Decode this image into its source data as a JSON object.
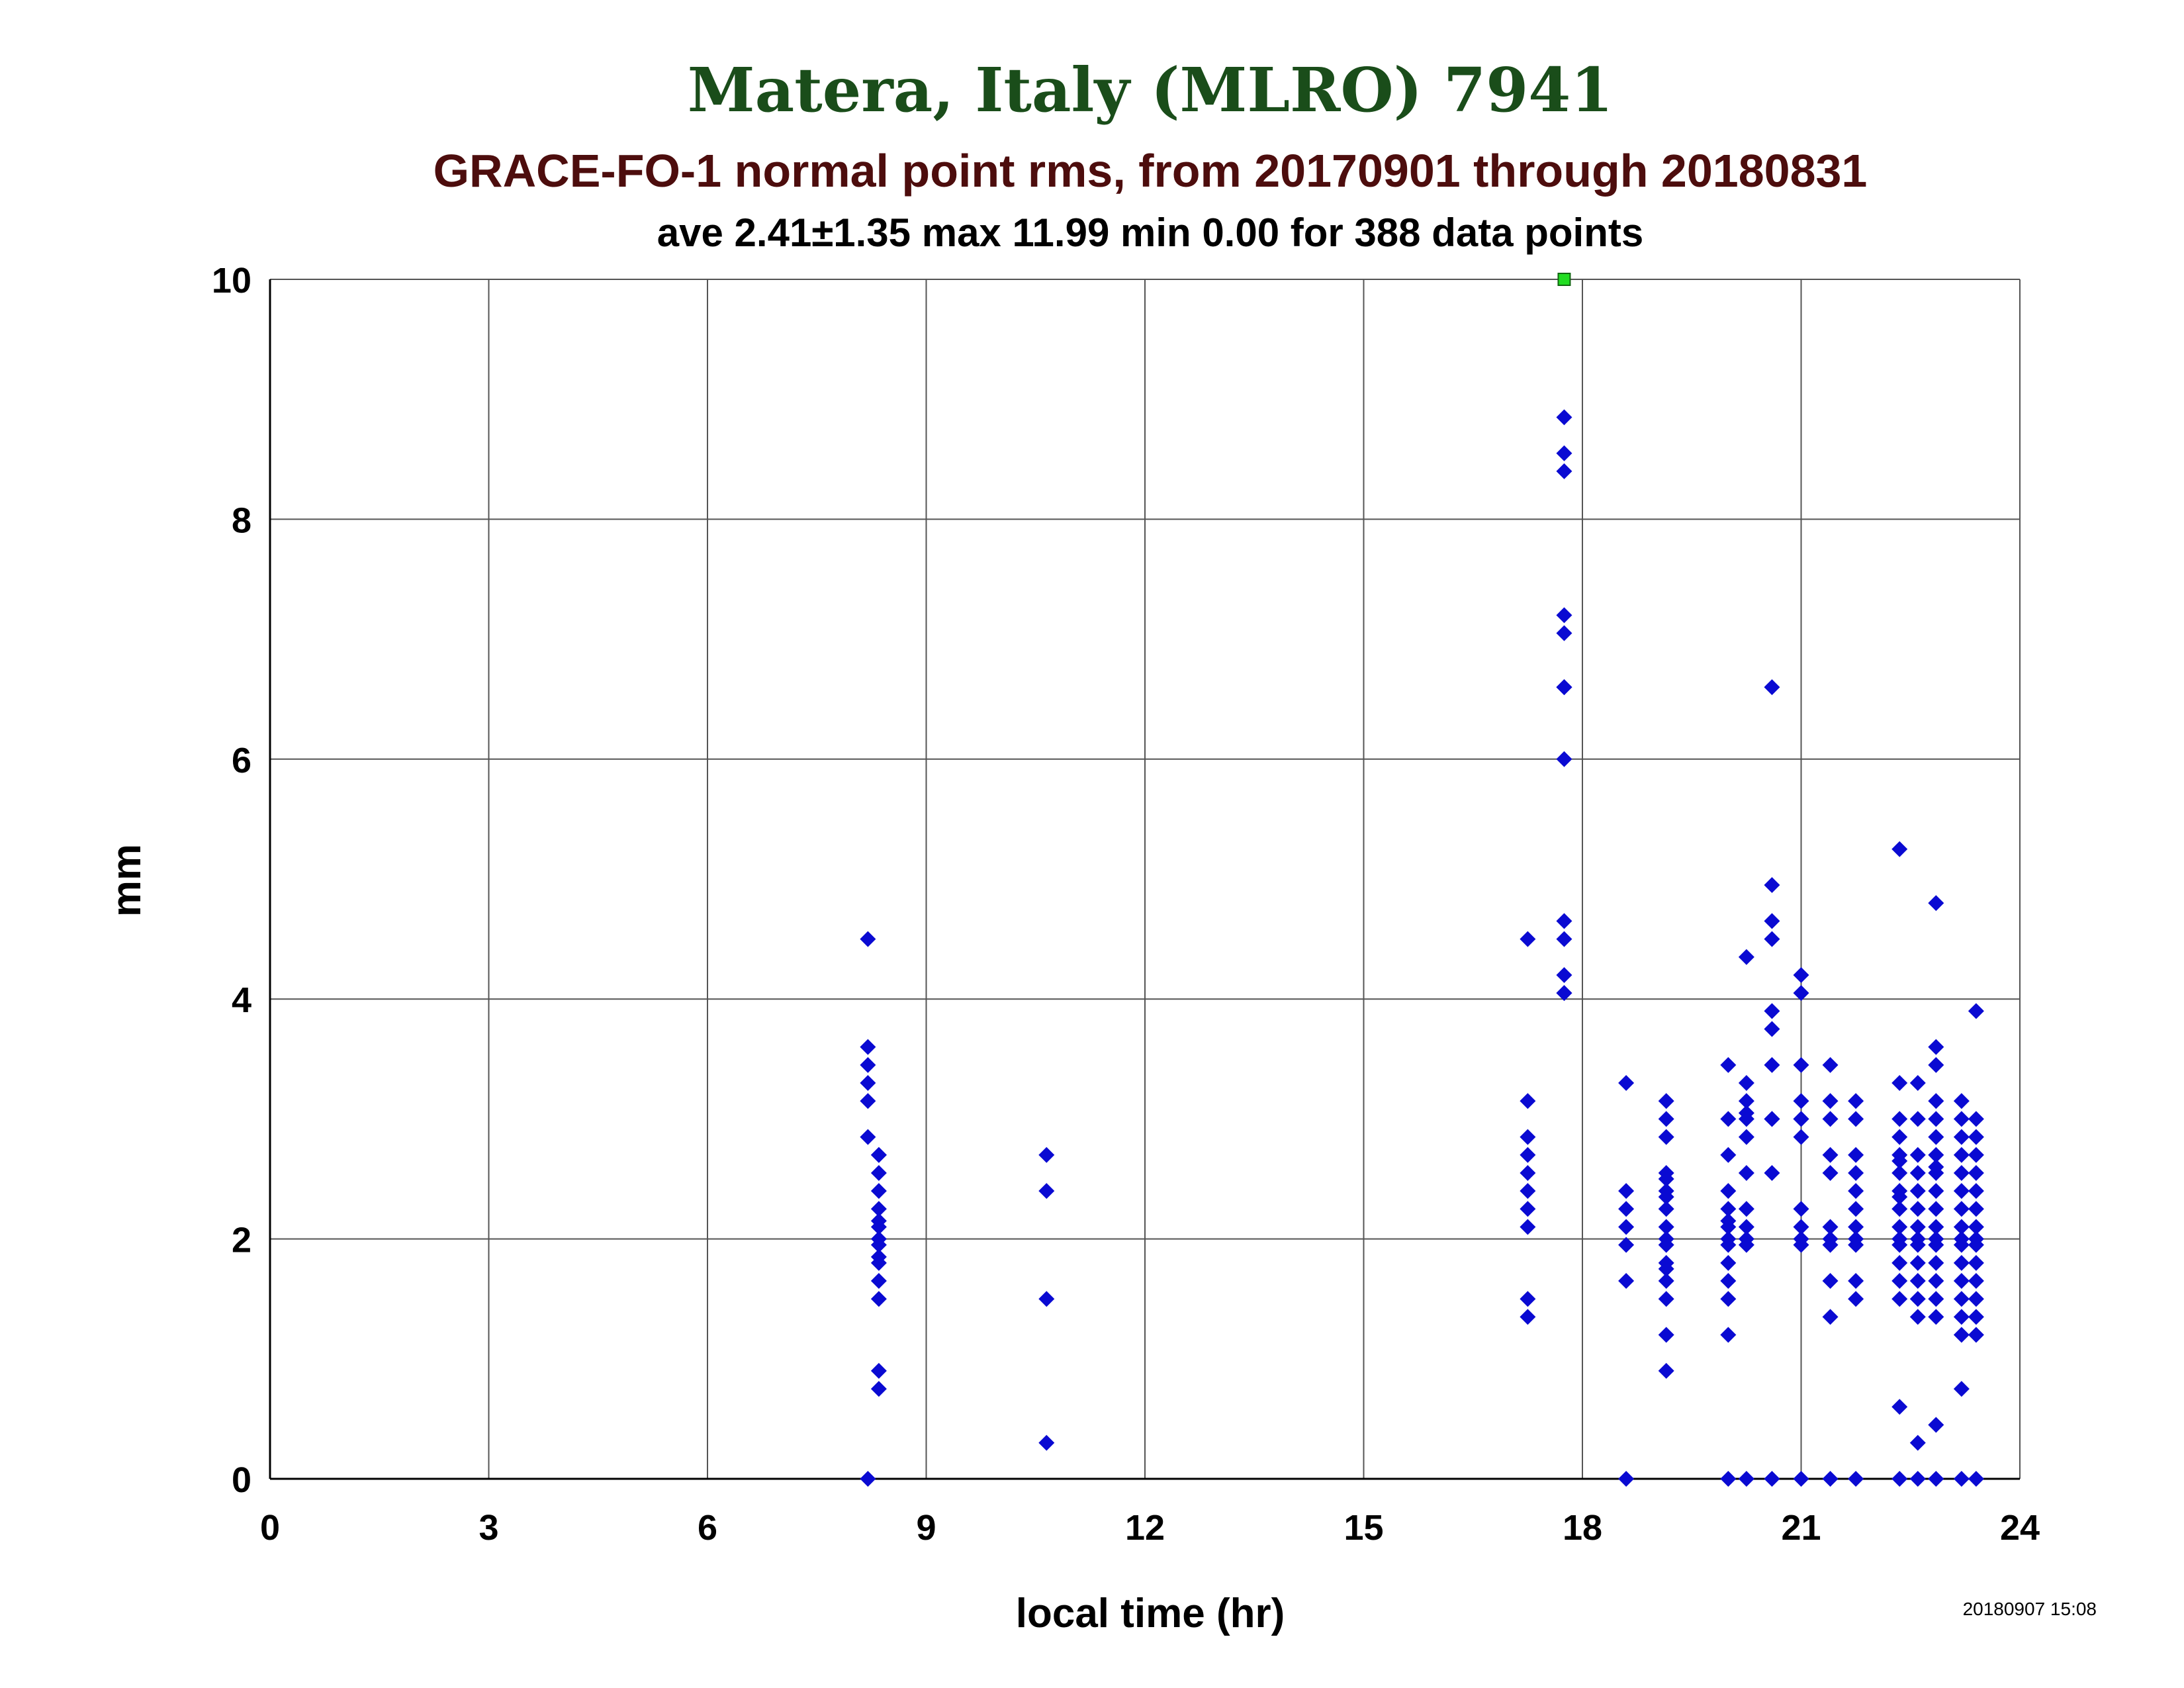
{
  "chart_data": {
    "type": "scatter",
    "title": "Matera, Italy (MLRO) 7941",
    "subtitle": "GRACE-FO-1 normal point rms, from 20170901 through 20180831",
    "stats_line": "ave 2.41±1.35 max 11.99 min 0.00 for 388 data points",
    "xlabel": "local time (hr)",
    "ylabel": "mm",
    "timestamp": "20180907 15:08",
    "xlim": [
      0,
      24
    ],
    "ylim": [
      0,
      10
    ],
    "xticks": [
      0,
      3,
      6,
      9,
      12,
      15,
      18,
      21,
      24
    ],
    "yticks": [
      0,
      2,
      4,
      6,
      8,
      10
    ],
    "grid": true,
    "colors": {
      "title": "#1a4d1a",
      "subtitle": "#4d0d0d",
      "text": "#000000",
      "points": "#0a0ad2",
      "outlier": "#22dd22",
      "grid": "#555555"
    },
    "outliers": [
      {
        "x": 17.75,
        "y": 10
      }
    ],
    "series": [
      {
        "x": [
          8.2,
          8.2,
          8.2,
          8.2,
          8.2,
          8.2,
          8.2,
          8.35,
          8.35,
          8.35,
          8.35,
          8.35,
          8.35,
          8.35,
          8.35,
          8.35,
          8.35,
          8.35,
          8.35,
          8.35,
          8.35,
          8.35,
          10.65,
          10.65,
          10.65,
          10.65,
          17.25,
          17.25,
          17.25,
          17.25,
          17.25,
          17.25,
          17.25,
          17.25,
          17.25,
          17.25,
          17.75,
          17.75,
          17.75,
          17.75,
          17.75,
          17.75,
          17.75,
          17.75,
          17.75,
          17.75,
          17.75,
          17.75,
          17.75,
          17.75,
          18.6,
          18.6,
          18.6,
          18.6,
          18.6,
          18.6,
          18.6,
          19.15,
          19.15,
          19.15,
          19.15,
          19.15,
          19.15,
          19.15,
          19.15,
          19.15,
          19.15,
          19.15,
          19.15,
          19.15,
          19.15,
          19.15,
          19.15,
          19.15,
          20.0,
          20.0,
          20.0,
          20.0,
          20.0,
          20.0,
          20.0,
          20.0,
          20.0,
          20.0,
          20.0,
          20.0,
          20.0,
          20.0,
          20.25,
          20.25,
          20.25,
          20.25,
          20.25,
          20.25,
          20.25,
          20.25,
          20.25,
          20.25,
          20.25,
          20.25,
          20.6,
          20.6,
          20.6,
          20.6,
          20.6,
          20.6,
          20.6,
          20.6,
          20.6,
          20.6,
          20.6,
          21.0,
          21.0,
          21.0,
          21.0,
          21.0,
          21.0,
          21.0,
          21.0,
          21.0,
          21.0,
          21.0,
          21.0,
          21.4,
          21.4,
          21.4,
          21.4,
          21.4,
          21.4,
          21.4,
          21.4,
          21.4,
          21.4,
          21.4,
          21.75,
          21.75,
          21.75,
          21.75,
          21.75,
          21.75,
          21.75,
          21.75,
          21.75,
          21.75,
          21.75,
          21.75,
          22.35,
          22.35,
          22.35,
          22.35,
          22.35,
          22.35,
          22.35,
          22.35,
          22.35,
          22.35,
          22.35,
          22.35,
          22.35,
          22.35,
          22.35,
          22.35,
          22.35,
          22.35,
          22.6,
          22.6,
          22.6,
          22.6,
          22.6,
          22.6,
          22.6,
          22.6,
          22.6,
          22.6,
          22.6,
          22.6,
          22.6,
          22.6,
          22.6,
          22.85,
          22.85,
          22.85,
          22.85,
          22.85,
          22.85,
          22.85,
          22.85,
          22.85,
          22.85,
          22.85,
          22.85,
          22.85,
          22.85,
          22.85,
          22.85,
          22.85,
          22.85,
          22.85,
          22.85,
          23.2,
          23.2,
          23.2,
          23.2,
          23.2,
          23.2,
          23.2,
          23.2,
          23.2,
          23.2,
          23.2,
          23.2,
          23.2,
          23.2,
          23.2,
          23.2,
          23.2,
          23.4,
          23.4,
          23.4,
          23.4,
          23.4,
          23.4,
          23.4,
          23.4,
          23.4,
          23.4,
          23.4,
          23.4,
          23.4,
          23.4,
          23.4,
          23.4
        ],
        "y": [
          0.0,
          2.85,
          3.15,
          3.3,
          3.45,
          3.6,
          4.5,
          0.75,
          0.9,
          1.5,
          1.65,
          1.8,
          1.95,
          2.0,
          2.1,
          2.25,
          2.4,
          2.55,
          2.7,
          2.7,
          1.85,
          2.15,
          0.3,
          1.5,
          2.4,
          2.7,
          1.35,
          1.5,
          2.1,
          2.25,
          2.4,
          2.55,
          2.7,
          2.85,
          3.15,
          4.5,
          4.05,
          4.2,
          4.5,
          4.65,
          6.0,
          6.6,
          6.6,
          7.05,
          7.2,
          8.4,
          8.55,
          8.85,
          4.05,
          6.6,
          0.0,
          1.65,
          1.95,
          2.1,
          2.25,
          2.4,
          3.3,
          0.9,
          1.2,
          1.5,
          1.65,
          1.8,
          1.95,
          2.1,
          2.25,
          2.4,
          2.55,
          2.85,
          3.0,
          3.15,
          2.0,
          2.35,
          2.5,
          1.75,
          0.0,
          1.2,
          1.5,
          1.65,
          1.8,
          1.95,
          2.1,
          2.25,
          2.4,
          2.7,
          3.0,
          3.45,
          2.0,
          2.15,
          0.0,
          1.95,
          2.1,
          2.25,
          2.55,
          2.85,
          3.0,
          3.15,
          3.3,
          4.35,
          2.0,
          3.05,
          0.0,
          2.55,
          3.0,
          3.45,
          3.75,
          3.9,
          4.5,
          4.65,
          4.95,
          6.6,
          3.0,
          0.0,
          1.95,
          2.1,
          2.25,
          2.85,
          3.0,
          3.15,
          3.45,
          4.05,
          4.2,
          2.0,
          3.0,
          0.0,
          1.35,
          1.65,
          1.95,
          2.1,
          2.55,
          2.7,
          3.0,
          3.15,
          3.45,
          2.0,
          0.0,
          1.5,
          1.65,
          1.95,
          2.1,
          2.25,
          2.4,
          2.55,
          2.7,
          3.0,
          3.15,
          2.0,
          0.0,
          0.6,
          1.5,
          1.65,
          1.8,
          1.95,
          2.1,
          2.25,
          2.4,
          2.55,
          2.7,
          2.85,
          3.0,
          3.3,
          5.25,
          2.0,
          2.35,
          2.65,
          0.0,
          0.3,
          1.35,
          1.5,
          1.65,
          1.8,
          1.95,
          2.1,
          2.25,
          2.4,
          2.55,
          2.7,
          3.0,
          3.3,
          2.0,
          0.0,
          0.45,
          1.35,
          1.5,
          1.65,
          1.8,
          1.95,
          2.1,
          2.25,
          2.4,
          2.55,
          2.7,
          2.85,
          3.0,
          3.15,
          3.45,
          3.6,
          4.8,
          2.0,
          2.6,
          0.0,
          0.75,
          1.2,
          1.35,
          1.5,
          1.65,
          1.8,
          1.95,
          2.1,
          2.25,
          2.4,
          2.55,
          2.7,
          2.85,
          3.0,
          3.15,
          2.0,
          0.0,
          1.2,
          1.35,
          1.5,
          1.65,
          1.8,
          1.95,
          2.1,
          2.25,
          2.4,
          2.55,
          2.7,
          2.85,
          3.0,
          3.9,
          2.0
        ]
      }
    ]
  }
}
